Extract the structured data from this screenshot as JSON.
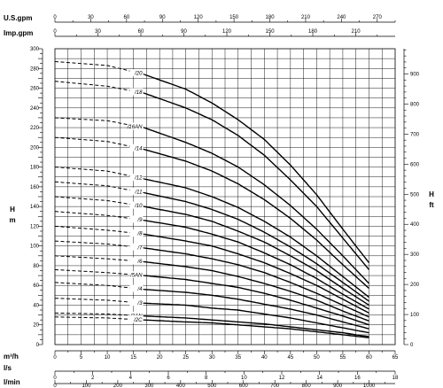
{
  "chart_data": {
    "type": "line",
    "title": "",
    "left_axis": {
      "unit": "H",
      "unit2": "m",
      "min": 0,
      "max": 300,
      "ticks": [
        0,
        20,
        40,
        60,
        80,
        100,
        120,
        140,
        160,
        180,
        200,
        220,
        240,
        260,
        280,
        300
      ]
    },
    "right_axis": {
      "unit": "H",
      "unit2": "ft",
      "min": 0,
      "max": 984,
      "ticks": [
        0,
        100,
        200,
        300,
        400,
        500,
        600,
        700,
        800,
        900
      ]
    },
    "x_axes": [
      {
        "label": "U.S.gpm",
        "max": 285,
        "ticks": [
          0,
          30,
          60,
          90,
          120,
          150,
          180,
          210,
          240,
          270
        ]
      },
      {
        "label": "Imp.gpm",
        "max": 237.5,
        "ticks": [
          0,
          30,
          60,
          90,
          120,
          150,
          180,
          210
        ]
      },
      {
        "label": "m³/h",
        "max": 65,
        "ticks": [
          0,
          5,
          10,
          15,
          20,
          25,
          30,
          35,
          40,
          45,
          50,
          55,
          60,
          65
        ]
      },
      {
        "label": "l/s",
        "max": 18,
        "ticks": [
          0,
          2,
          4,
          6,
          8,
          10,
          12,
          14,
          16,
          18
        ]
      },
      {
        "label": "l/min",
        "max": 1083,
        "ticks": [
          0,
          100,
          200,
          300,
          400,
          500,
          600,
          700,
          800,
          900,
          1000
        ]
      }
    ],
    "flow_unit": "m³/h",
    "recommended_range_start": 17,
    "flow_end": 60,
    "series": [
      {
        "name": "/20",
        "values": [
          [
            0,
            287
          ],
          [
            10,
            283
          ],
          [
            17,
            274
          ],
          [
            25,
            259
          ],
          [
            30,
            245
          ],
          [
            35,
            228
          ],
          [
            40,
            208
          ],
          [
            45,
            182
          ],
          [
            50,
            152
          ],
          [
            55,
            117
          ],
          [
            60,
            83
          ]
        ]
      },
      {
        "name": "/18",
        "values": [
          [
            0,
            267
          ],
          [
            10,
            262
          ],
          [
            17,
            255
          ],
          [
            25,
            240
          ],
          [
            30,
            228
          ],
          [
            35,
            212
          ],
          [
            40,
            192
          ],
          [
            45,
            167
          ],
          [
            50,
            140
          ],
          [
            55,
            108
          ],
          [
            60,
            76
          ]
        ]
      },
      {
        "name": "/16AN",
        "values": [
          [
            0,
            230
          ],
          [
            10,
            227
          ],
          [
            17,
            220
          ],
          [
            25,
            205
          ],
          [
            30,
            194
          ],
          [
            35,
            180
          ],
          [
            40,
            162
          ],
          [
            45,
            141
          ],
          [
            50,
            117
          ],
          [
            55,
            90
          ],
          [
            60,
            62
          ]
        ]
      },
      {
        "name": "/14",
        "values": [
          [
            0,
            210
          ],
          [
            10,
            206
          ],
          [
            17,
            198
          ],
          [
            25,
            186
          ],
          [
            30,
            176
          ],
          [
            35,
            163
          ],
          [
            40,
            147
          ],
          [
            45,
            128
          ],
          [
            50,
            106
          ],
          [
            55,
            81
          ],
          [
            60,
            57
          ]
        ]
      },
      {
        "name": "/12",
        "values": [
          [
            0,
            180
          ],
          [
            10,
            176
          ],
          [
            17,
            168
          ],
          [
            25,
            159
          ],
          [
            30,
            150
          ],
          [
            35,
            139
          ],
          [
            40,
            125
          ],
          [
            45,
            109
          ],
          [
            50,
            90
          ],
          [
            55,
            69
          ],
          [
            60,
            48
          ]
        ]
      },
      {
        "name": "/11",
        "values": [
          [
            0,
            165
          ],
          [
            10,
            161
          ],
          [
            17,
            154
          ],
          [
            25,
            145
          ],
          [
            30,
            137
          ],
          [
            35,
            127
          ],
          [
            40,
            114
          ],
          [
            45,
            99
          ],
          [
            50,
            82
          ],
          [
            55,
            63
          ],
          [
            60,
            44
          ]
        ]
      },
      {
        "name": "/10",
        "values": [
          [
            0,
            150
          ],
          [
            10,
            146
          ],
          [
            17,
            140
          ],
          [
            25,
            132
          ],
          [
            30,
            125
          ],
          [
            35,
            115
          ],
          [
            40,
            104
          ],
          [
            45,
            90
          ],
          [
            50,
            75
          ],
          [
            55,
            57
          ],
          [
            60,
            40
          ]
        ]
      },
      {
        "name": "/9",
        "values": [
          [
            0,
            135
          ],
          [
            10,
            131
          ],
          [
            17,
            126
          ],
          [
            25,
            119
          ],
          [
            30,
            112
          ],
          [
            35,
            104
          ],
          [
            40,
            93
          ],
          [
            45,
            81
          ],
          [
            50,
            67
          ],
          [
            55,
            51
          ],
          [
            60,
            36
          ]
        ]
      },
      {
        "name": "/8",
        "values": [
          [
            0,
            120
          ],
          [
            10,
            116
          ],
          [
            17,
            112
          ],
          [
            25,
            105
          ],
          [
            30,
            100
          ],
          [
            35,
            92
          ],
          [
            40,
            83
          ],
          [
            45,
            72
          ],
          [
            50,
            60
          ],
          [
            55,
            46
          ],
          [
            60,
            32
          ]
        ]
      },
      {
        "name": "/7",
        "values": [
          [
            0,
            105
          ],
          [
            10,
            102
          ],
          [
            17,
            98
          ],
          [
            25,
            92
          ],
          [
            30,
            87
          ],
          [
            35,
            81
          ],
          [
            40,
            73
          ],
          [
            45,
            63
          ],
          [
            50,
            52
          ],
          [
            55,
            40
          ],
          [
            60,
            28
          ]
        ]
      },
      {
        "name": "/6",
        "values": [
          [
            0,
            90
          ],
          [
            10,
            87
          ],
          [
            17,
            84
          ],
          [
            25,
            79
          ],
          [
            30,
            75
          ],
          [
            35,
            69
          ],
          [
            40,
            62
          ],
          [
            45,
            54
          ],
          [
            50,
            45
          ],
          [
            55,
            34
          ],
          [
            60,
            24
          ]
        ]
      },
      {
        "name": "/5AN",
        "values": [
          [
            0,
            76
          ],
          [
            10,
            73
          ],
          [
            17,
            70
          ],
          [
            25,
            66
          ],
          [
            30,
            62
          ],
          [
            35,
            58
          ],
          [
            40,
            52
          ],
          [
            45,
            45
          ],
          [
            50,
            37
          ],
          [
            55,
            29
          ],
          [
            60,
            20
          ]
        ]
      },
      {
        "name": "/4",
        "values": [
          [
            0,
            63
          ],
          [
            10,
            60
          ],
          [
            17,
            56
          ],
          [
            25,
            53
          ],
          [
            30,
            50
          ],
          [
            35,
            46
          ],
          [
            40,
            41
          ],
          [
            45,
            36
          ],
          [
            50,
            30
          ],
          [
            55,
            23
          ],
          [
            60,
            16
          ]
        ]
      },
      {
        "name": "/3",
        "values": [
          [
            0,
            47
          ],
          [
            10,
            45
          ],
          [
            17,
            42
          ],
          [
            25,
            40
          ],
          [
            30,
            37
          ],
          [
            35,
            35
          ],
          [
            40,
            31
          ],
          [
            45,
            27
          ],
          [
            50,
            22
          ],
          [
            55,
            17
          ],
          [
            60,
            12
          ]
        ]
      },
      {
        "name": "/2AN",
        "values": [
          [
            0,
            32
          ],
          [
            10,
            31
          ],
          [
            17,
            29
          ],
          [
            25,
            27
          ],
          [
            30,
            25
          ],
          [
            35,
            23
          ],
          [
            40,
            21
          ],
          [
            45,
            18
          ],
          [
            50,
            15
          ],
          [
            55,
            12
          ],
          [
            60,
            8
          ]
        ]
      },
      {
        "name": "/2C",
        "values": [
          [
            0,
            28
          ],
          [
            10,
            27
          ],
          [
            17,
            25
          ],
          [
            25,
            23
          ],
          [
            30,
            22
          ],
          [
            35,
            20
          ],
          [
            40,
            18
          ],
          [
            45,
            16
          ],
          [
            50,
            13
          ],
          [
            55,
            10
          ],
          [
            60,
            7
          ]
        ]
      }
    ]
  }
}
